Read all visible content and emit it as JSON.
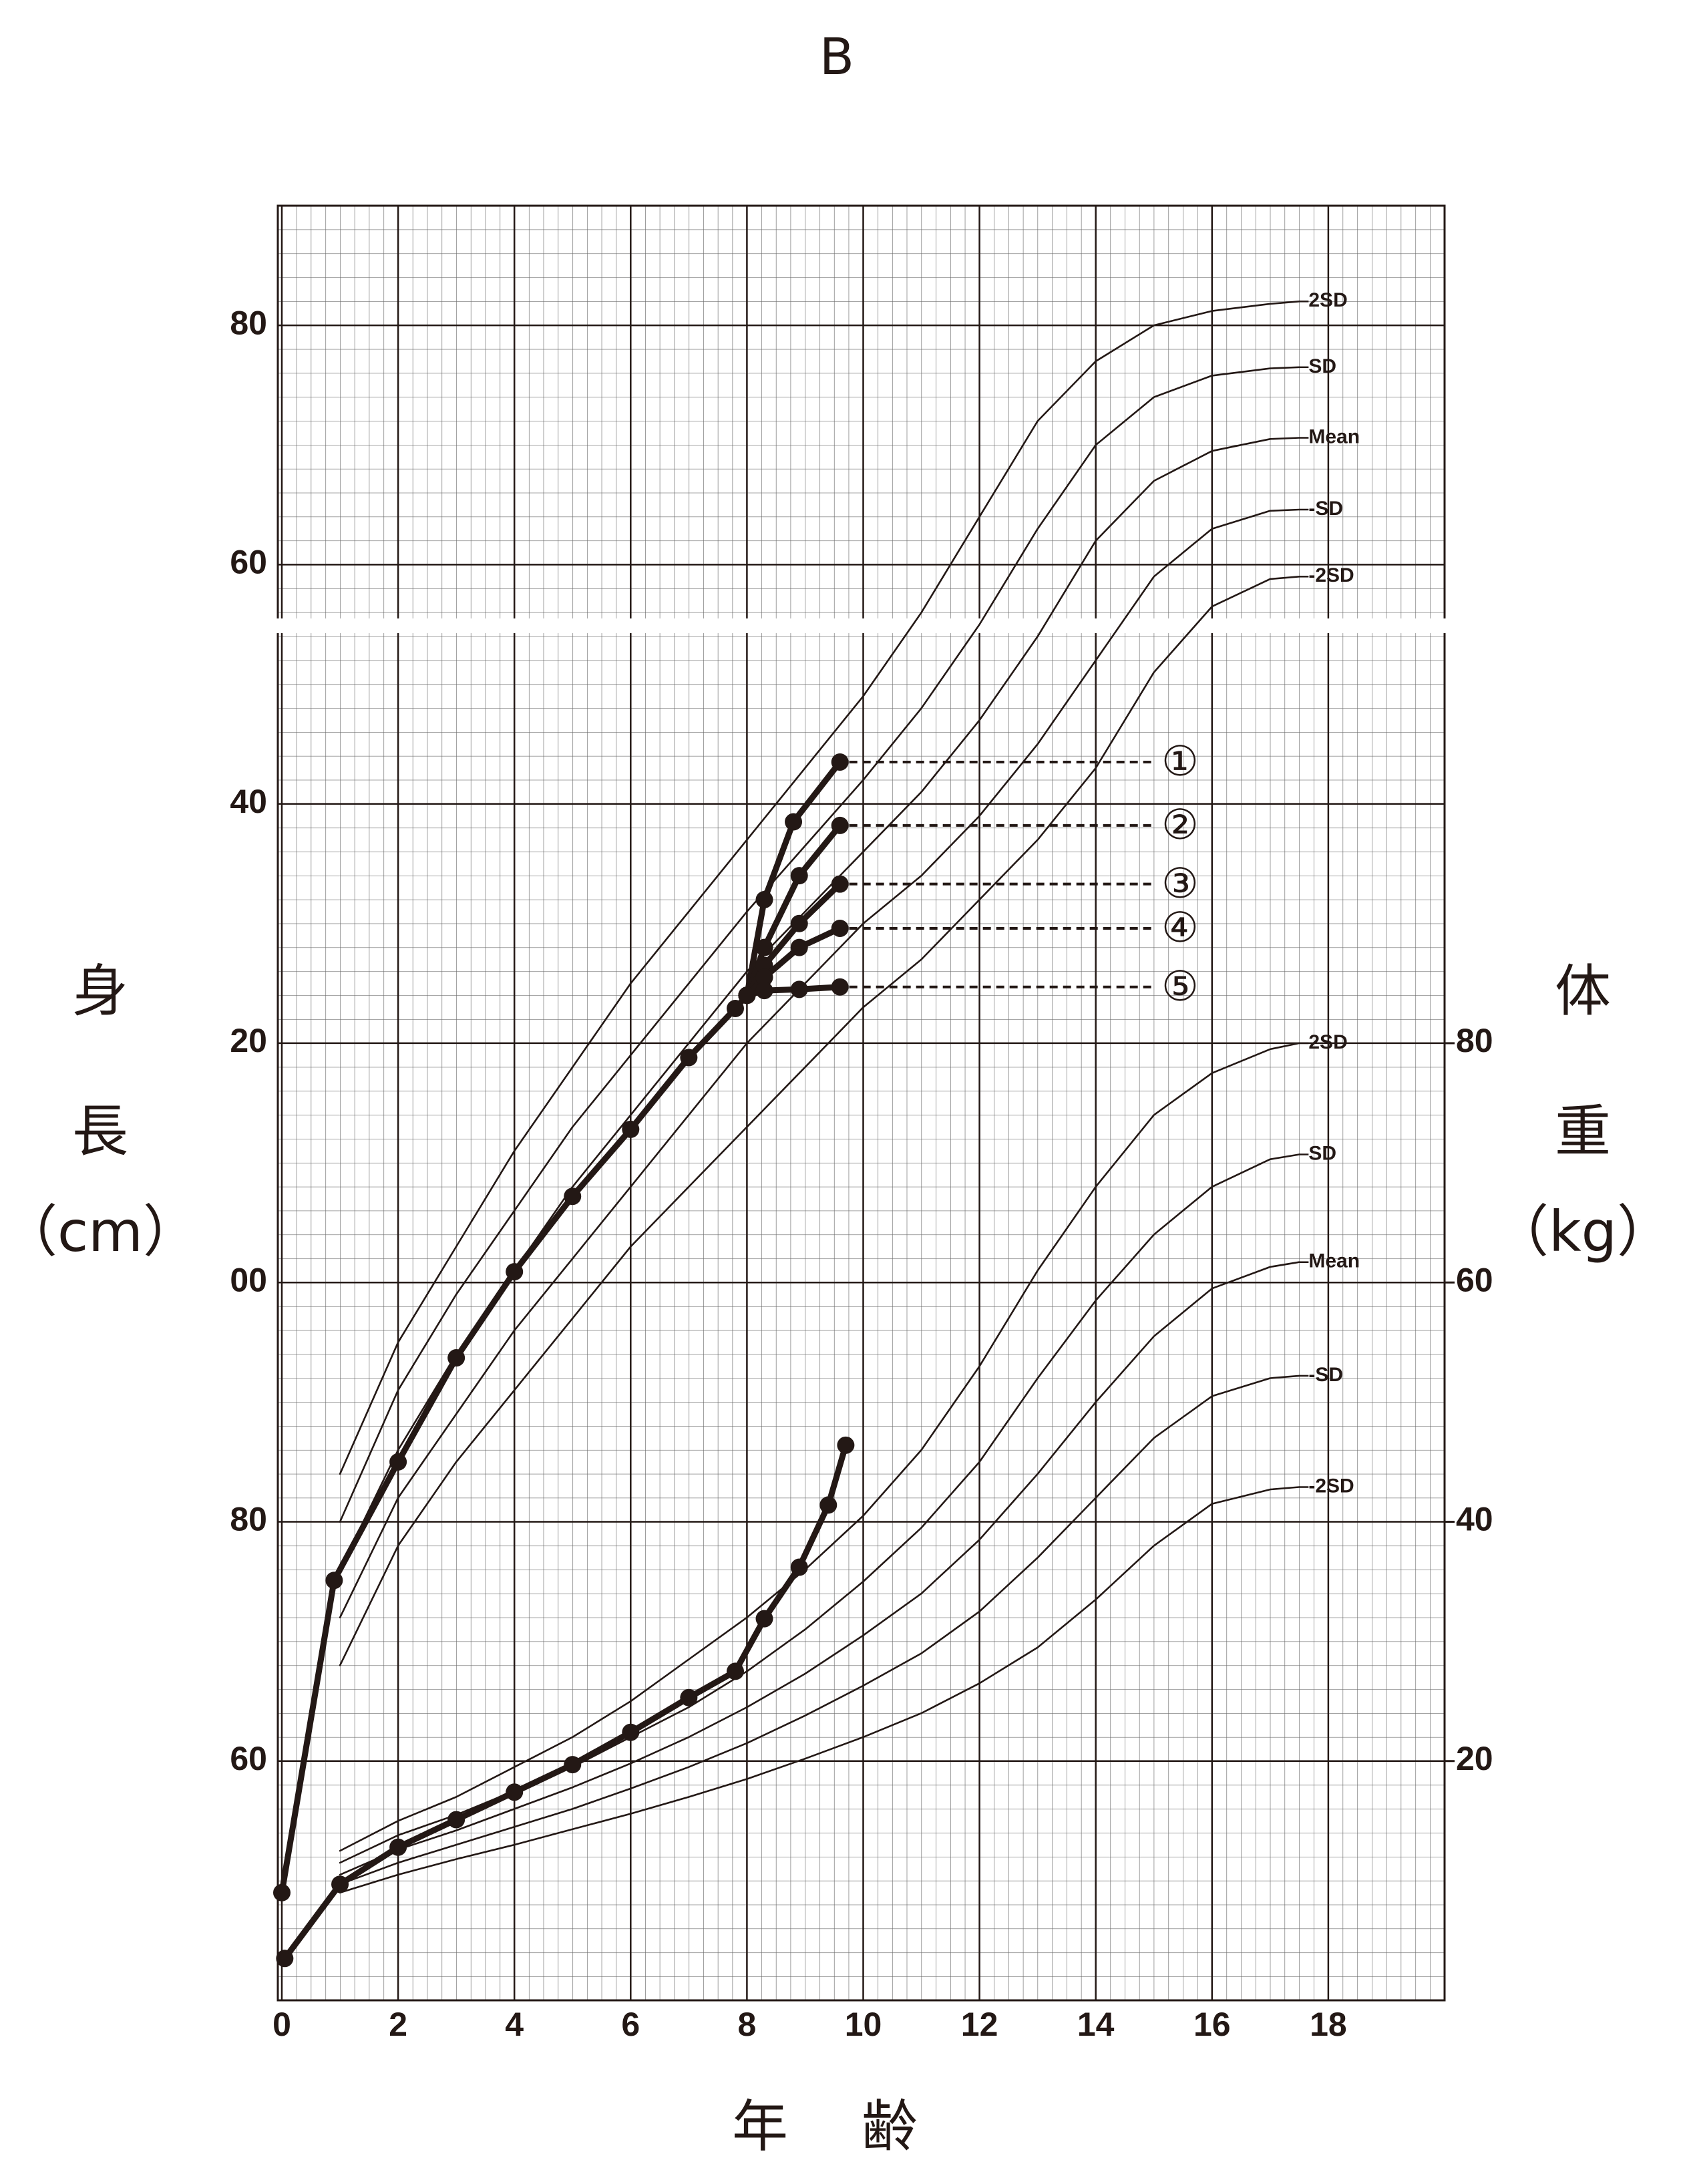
{
  "chart_data": {
    "type": "line",
    "title": "B",
    "xlabel": "年齢",
    "ylabel": [
      "身",
      "長",
      "（cm）"
    ],
    "y2label": [
      "体",
      "重",
      "（kg）"
    ],
    "xlim": [
      0,
      20
    ],
    "xticks": [
      0,
      2,
      4,
      6,
      8,
      10,
      12,
      14,
      16,
      18
    ],
    "ylim": [
      40,
      190
    ],
    "yticks": [
      60,
      80,
      {
        "value": 100,
        "label": "00"
      },
      {
        "value": 120,
        "label": "20"
      },
      {
        "value": 140,
        "label": "40"
      },
      {
        "value": 160,
        "label": "60"
      },
      {
        "value": 180,
        "label": "80"
      }
    ],
    "y2lim": [
      0,
      150
    ],
    "y2ticks": [
      20,
      40,
      60,
      80
    ],
    "grid": true,
    "color": "#231815",
    "series": [
      {
        "name": "2SD",
        "x": [
          1,
          2,
          3,
          4,
          5,
          6,
          7,
          8,
          9,
          10,
          11,
          12,
          13,
          14,
          15,
          16,
          17,
          17.5
        ],
        "values": [
          84,
          95,
          103,
          111,
          118,
          125,
          131,
          137,
          143,
          149,
          156,
          164,
          172,
          177,
          180,
          181.2,
          181.8,
          182
        ]
      },
      {
        "name": "SD",
        "x": [
          1,
          2,
          3,
          4,
          5,
          6,
          7,
          8,
          9,
          10,
          11,
          12,
          13,
          14,
          15,
          16,
          17,
          17.5
        ],
        "values": [
          80,
          91,
          99,
          106,
          113,
          119,
          125,
          131,
          136.5,
          142,
          148,
          155,
          163,
          170,
          174,
          175.8,
          176.4,
          176.5
        ]
      },
      {
        "name": "Mean",
        "x": [
          1,
          2,
          3,
          4,
          5,
          6,
          7,
          8,
          9,
          10,
          11,
          12,
          13,
          14,
          15,
          16,
          17,
          17.5
        ],
        "values": [
          76,
          86,
          94,
          101,
          108,
          114,
          120,
          126,
          131,
          136,
          141,
          147,
          154,
          162,
          167,
          169.5,
          170.5,
          170.6
        ]
      },
      {
        "name": "-SD",
        "x": [
          1,
          2,
          3,
          4,
          5,
          6,
          7,
          8,
          9,
          10,
          11,
          12,
          13,
          14,
          15,
          16,
          17,
          17.5
        ],
        "values": [
          72,
          82,
          89,
          96,
          102,
          108,
          114,
          120,
          125,
          130,
          134,
          139,
          145,
          152,
          159,
          163,
          164.5,
          164.6
        ]
      },
      {
        "name": "-2SD",
        "x": [
          1,
          2,
          3,
          4,
          5,
          6,
          7,
          8,
          9,
          10,
          11,
          12,
          13,
          14,
          15,
          16,
          17,
          17.5
        ],
        "values": [
          68,
          78,
          85,
          91,
          97,
          103,
          108,
          113,
          118,
          123,
          127,
          132,
          137,
          143,
          151,
          156.5,
          158.8,
          159
        ]
      },
      {
        "name": "2SD",
        "axis": "y2",
        "x": [
          1,
          2,
          3,
          4,
          5,
          6,
          7,
          8,
          9,
          10,
          11,
          12,
          13,
          14,
          15,
          16,
          17,
          17.5
        ],
        "values": [
          12.5,
          15,
          17,
          19.5,
          22,
          25,
          28.5,
          32,
          36,
          40.5,
          46,
          53,
          61,
          68,
          74,
          77.5,
          79.5,
          80
        ]
      },
      {
        "name": "SD",
        "axis": "y2",
        "x": [
          1,
          2,
          3,
          4,
          5,
          6,
          7,
          8,
          9,
          10,
          11,
          12,
          13,
          14,
          15,
          16,
          17,
          17.5
        ],
        "values": [
          11.5,
          13.8,
          15.5,
          17.5,
          19.5,
          22,
          24.5,
          27.5,
          31,
          35,
          39.5,
          45,
          52,
          58.5,
          64,
          68,
          70.3,
          70.7
        ]
      },
      {
        "name": "Mean",
        "axis": "y2",
        "x": [
          1,
          2,
          3,
          4,
          5,
          6,
          7,
          8,
          9,
          10,
          11,
          12,
          13,
          14,
          15,
          16,
          17,
          17.5
        ],
        "values": [
          10.5,
          12.6,
          14.2,
          16,
          17.8,
          19.8,
          22,
          24.5,
          27.3,
          30.5,
          34,
          38.5,
          44,
          50,
          55.5,
          59.5,
          61.3,
          61.7
        ]
      },
      {
        "name": "-SD",
        "axis": "y2",
        "x": [
          1,
          2,
          3,
          4,
          5,
          6,
          7,
          8,
          9,
          10,
          11,
          12,
          13,
          14,
          15,
          16,
          17,
          17.5
        ],
        "values": [
          9.7,
          11.5,
          13,
          14.5,
          16,
          17.7,
          19.5,
          21.5,
          23.8,
          26.3,
          29,
          32.5,
          37,
          42,
          47,
          50.5,
          52,
          52.2
        ]
      },
      {
        "name": "-2SD",
        "axis": "y2",
        "x": [
          1,
          2,
          3,
          4,
          5,
          6,
          7,
          8,
          9,
          10,
          11,
          12,
          13,
          14,
          15,
          16,
          17,
          17.5
        ],
        "values": [
          9,
          10.5,
          11.8,
          13,
          14.3,
          15.6,
          17,
          18.5,
          20.2,
          22,
          24,
          26.5,
          29.5,
          33.5,
          38,
          41.5,
          42.7,
          42.9
        ]
      },
      {
        "markers": true,
        "x": [
          0,
          0.9,
          2,
          3,
          4,
          5,
          6,
          7,
          7.8,
          8
        ],
        "values": [
          49,
          75.1,
          85,
          93.7,
          100.9,
          107.2,
          112.8,
          118.8,
          122.9,
          124
        ]
      },
      {
        "name": "①",
        "markers": true,
        "x": [
          8,
          8.3,
          8.8,
          9.6
        ],
        "values": [
          124,
          132,
          138.5,
          143.5
        ]
      },
      {
        "name": "②",
        "markers": true,
        "x": [
          8,
          8.3,
          8.9,
          9.6
        ],
        "values": [
          124,
          128,
          134,
          138.2
        ]
      },
      {
        "name": "③",
        "markers": true,
        "x": [
          8,
          8.3,
          8.9,
          9.6
        ],
        "values": [
          124,
          126.5,
          130,
          133.3
        ]
      },
      {
        "name": "④",
        "markers": true,
        "x": [
          8,
          8.3,
          8.9,
          9.6
        ],
        "values": [
          124,
          125.5,
          128,
          129.6
        ]
      },
      {
        "name": "⑤",
        "markers": true,
        "x": [
          8,
          8.3,
          8.9,
          9.6
        ],
        "values": [
          124,
          124.4,
          124.5,
          124.7
        ]
      },
      {
        "markers": true,
        "axis": "y2",
        "x": [
          0.05,
          1,
          2,
          3,
          4,
          5,
          6,
          7,
          7.8,
          8.3,
          8.9,
          9.4,
          9.7
        ],
        "values": [
          3.5,
          9.7,
          12.8,
          15.1,
          17.4,
          19.7,
          22.4,
          25.3,
          27.5,
          31.9,
          36.2,
          41.4,
          46.4
        ]
      }
    ]
  }
}
